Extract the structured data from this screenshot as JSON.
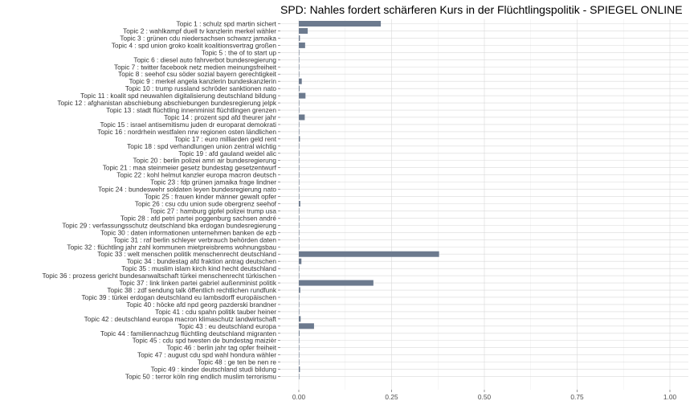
{
  "chart_data": {
    "type": "bar",
    "orientation": "horizontal",
    "title": "SPD: Nahles fordert schärferen Kurs in der Flüchtlingspolitik - SPIEGEL ONLINE",
    "xlabel": "",
    "ylabel": "",
    "xlim": [
      0,
      1
    ],
    "xticks": [
      "0.00",
      "0.25",
      "0.50",
      "0.75",
      "1.00"
    ],
    "xtick_values": [
      0,
      0.25,
      0.5,
      0.75,
      1.0
    ],
    "grid": true,
    "bar_color": "#6c7a8e",
    "categories": [
      "Topic 1 : schulz spd martin sichert",
      "Topic 2 : wahlkampf duell tv kanzlerin merkel wähler",
      "Topic 3 : grünen cdu niedersachsen schwarz jamaika",
      "Topic 4 : spd union groko koalit koalitionsvertrag großen",
      "Topic 5 : the of to start up",
      "Topic 6 : diesel auto fahrverbot bundesregierung",
      "Topic 7 : twitter facebook netz medien meinungsfreiheit",
      "Topic 8 : seehof csu söder sozial bayern gerechtigkeit",
      "Topic 9 : merkel angela kanzlerin bundeskanzlerin",
      "Topic 10 : trump russland schröder sanktionen nato",
      "Topic 11 : koalit spd neuwahlen digitalisierung deutschland bildung",
      "Topic 12 : afghanistan abschiebung abschiebungen bundesregierung jelpk",
      "Topic 13 : stadt flüchtling innenminist flüchtlingen grenzen",
      "Topic 14 : prozent spd afd theurer jahr",
      "Topic 15 : israel antisemitismu juden dr europarat demokrati",
      "Topic 16 : nordrhein westfalen nrw regionen osten ländlichen",
      "Topic 17 : euro milliarden geld rent",
      "Topic 18 : spd verhandlungen union zentral wichtig",
      "Topic 19 : afd gauland weidel alic",
      "Topic 20 : berlin polizei amri air bundesregierung",
      "Topic 21 : maa steinmeier gesetz bundestag gesetzentwurf",
      "Topic 22 : kohl helmut kanzler europa macron deutsch",
      "Topic 23 : fdp grünen jamaika frage lindner",
      "Topic 24 : bundeswehr soldaten leyen bundesregierung nato",
      "Topic 25 : frauen kinder männer gewalt opfer",
      "Topic 26 : csu cdu union sude obergrenz seehof",
      "Topic 27 : hamburg gipfel polizei trump usa",
      "Topic 28 : afd petri partei poggenburg sachsen andré",
      "Topic 29 : verfassungsschutz deutschland bka erdogan bundesregierung",
      "Topic 30 : daten informationen unternehmen banken de ezb",
      "Topic 31 : raf berlin schleyer verbrauch behörden daten",
      "Topic 32 : flüchtling jahr zahl kommunen mietpreisbrems wohnungsbau",
      "Topic 33 : welt menschen politik menschenrecht deutschland",
      "Topic 34 : bundestag afd fraktion antrag deutschen",
      "Topic 35 : muslim islam kirch kind hecht deutschland",
      "Topic 36 : prozess gericht bundesanwaltschaft türkei menschenrecht türkischen",
      "Topic 37 : link linken partei gabriel außenminist politik",
      "Topic 38 : zdf sendung talk öffentlich rechtlichen rundfunk",
      "Topic 39 : türkei erdogan deutschland eu lambsdorff europäischen",
      "Topic 40 : höcke afd npd georg pazderski brandner",
      "Topic 41 : cdu spahn politik tauber heiner",
      "Topic 42 : deutschland europa macron klimaschutz landwirtschaft",
      "Topic 43 : eu deutschland europa",
      "Topic 44 : familiennachzug flüchtling deutschland migranten",
      "Topic 45 : cdu spd twesten de bundestag maizièr",
      "Topic 46 : berlin jahr tag opfer freiheit",
      "Topic 47 : august cdu spd wahl hondura wähler",
      "Topic 48 : ge ten be nen re",
      "Topic 49 : kinder deutschland studi bildung",
      "Topic 50 : terror köln ring endlich muslim terrorismu"
    ],
    "values": [
      0.221,
      0.024,
      0.003,
      0.017,
      0.0005,
      0.0005,
      0.001,
      0.001,
      0.008,
      0.002,
      0.018,
      0.0005,
      0.001,
      0.016,
      0.0005,
      0.001,
      0.003,
      0.0005,
      0.001,
      0.0005,
      0.0005,
      0.001,
      0.001,
      0.001,
      0.001,
      0.004,
      0.0005,
      0.0005,
      0.0005,
      0.0005,
      0.0005,
      0.0005,
      0.378,
      0.007,
      0.0005,
      0.0005,
      0.201,
      0.004,
      0.001,
      0.0005,
      0.0005,
      0.005,
      0.041,
      0.002,
      0.001,
      0.001,
      0.0005,
      0.0005,
      0.003,
      0.0005
    ]
  }
}
